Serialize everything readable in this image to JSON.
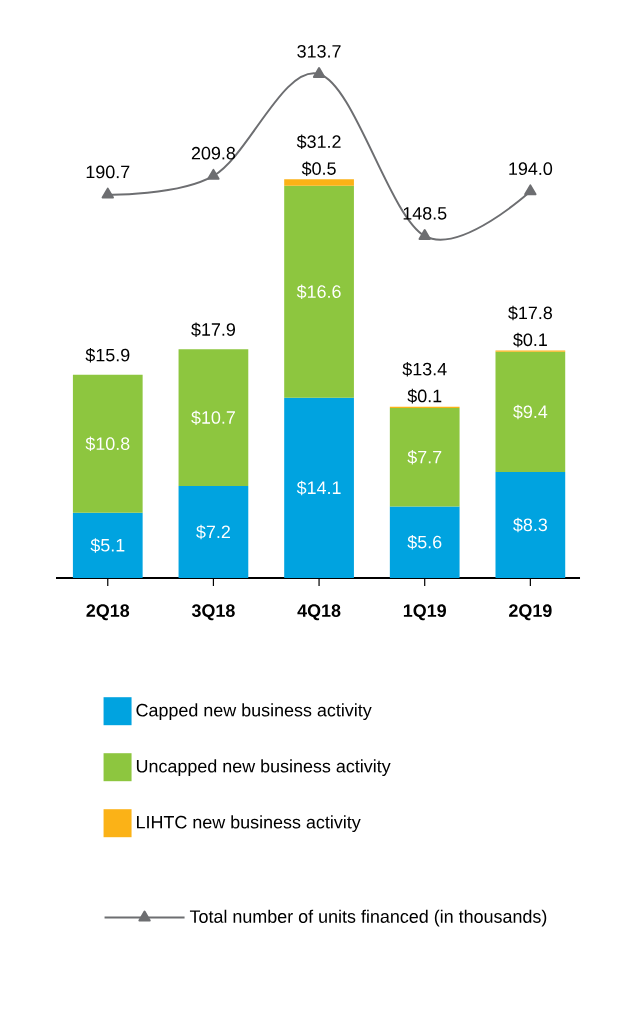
{
  "chart_data": {
    "type": "bar",
    "stacked": true,
    "categories": [
      "2Q18",
      "3Q18",
      "4Q18",
      "1Q19",
      "2Q19"
    ],
    "series": [
      {
        "name": "Capped new business activity",
        "color": "#00a3e0",
        "values": [
          5.1,
          7.2,
          14.1,
          5.6,
          8.3
        ],
        "value_labels": [
          "$5.1",
          "$7.2",
          "$14.1",
          "$5.6",
          "$8.3"
        ]
      },
      {
        "name": "Uncapped new business activity",
        "color": "#8dc63f",
        "values": [
          10.8,
          10.7,
          16.6,
          7.7,
          9.4
        ],
        "value_labels": [
          "$10.8",
          "$10.7",
          "$16.6",
          "$7.7",
          "$9.4"
        ]
      },
      {
        "name": "LIHTC new business activity",
        "color": "#fbb217",
        "values": [
          null,
          null,
          0.5,
          0.1,
          0.1
        ],
        "value_labels": [
          null,
          null,
          "$0.5",
          "$0.1",
          "$0.1"
        ]
      },
      {
        "name": "Total number of units financed (in thousands)",
        "type": "line",
        "axis": "y2",
        "color": "#6d6e71",
        "marker": "triangle",
        "values": [
          190.7,
          209.8,
          313.7,
          148.5,
          194.0
        ],
        "value_labels": [
          "190.7",
          "209.8",
          "313.7",
          "148.5",
          "194.0"
        ]
      }
    ],
    "totals": [
      "$15.9",
      "$17.9",
      "$31.2",
      "$13.4",
      "$17.8"
    ],
    "tick_labels": "x",
    "legend": "bottom"
  }
}
